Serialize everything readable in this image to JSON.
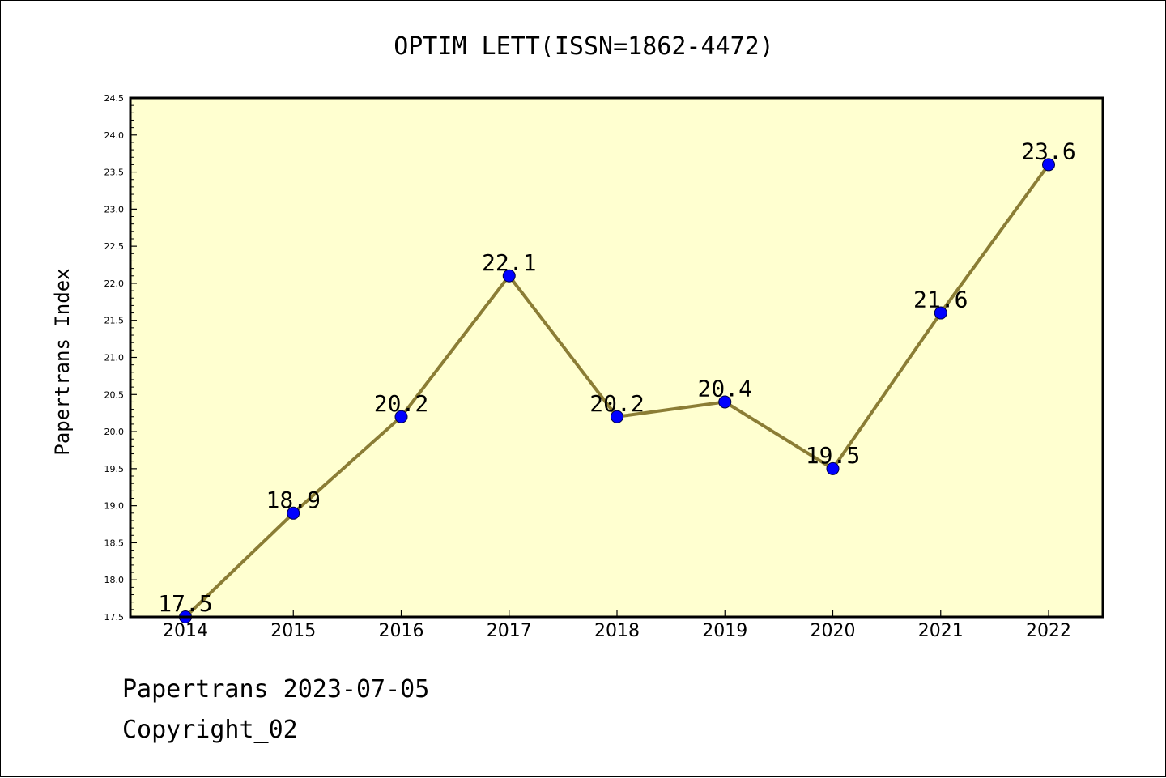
{
  "chart_data": {
    "type": "line",
    "title": "OPTIM LETT(ISSN=1862-4472)",
    "xlabel": "",
    "ylabel": "Papertrans Index",
    "categories": [
      "2014",
      "2015",
      "2016",
      "2017",
      "2018",
      "2019",
      "2020",
      "2021",
      "2022"
    ],
    "series": [
      {
        "values": [
          17.5,
          18.9,
          20.2,
          22.1,
          20.2,
          20.4,
          19.5,
          21.6,
          23.6
        ],
        "data_labels": [
          "17.5",
          "18.9",
          "20.2",
          "22.1",
          "20.2",
          "20.4",
          "19.5",
          "21.6",
          "23.6"
        ]
      }
    ],
    "ylim": [
      17.5,
      24.5
    ],
    "yticks": [
      "17.5",
      "18.0",
      "18.5",
      "19.0",
      "19.5",
      "20.0",
      "20.5",
      "21.0",
      "21.5",
      "22.0",
      "22.5",
      "23.0",
      "23.5",
      "24.0",
      "24.5"
    ],
    "grid": false,
    "legend": "none",
    "colors": {
      "plot_background": "#ffffd0",
      "line": "#8b7d35",
      "marker": "#0000ff",
      "axes": "#000000"
    }
  },
  "footer": {
    "line1": "Papertrans 2023-07-05",
    "line2": "Copyright_02"
  }
}
